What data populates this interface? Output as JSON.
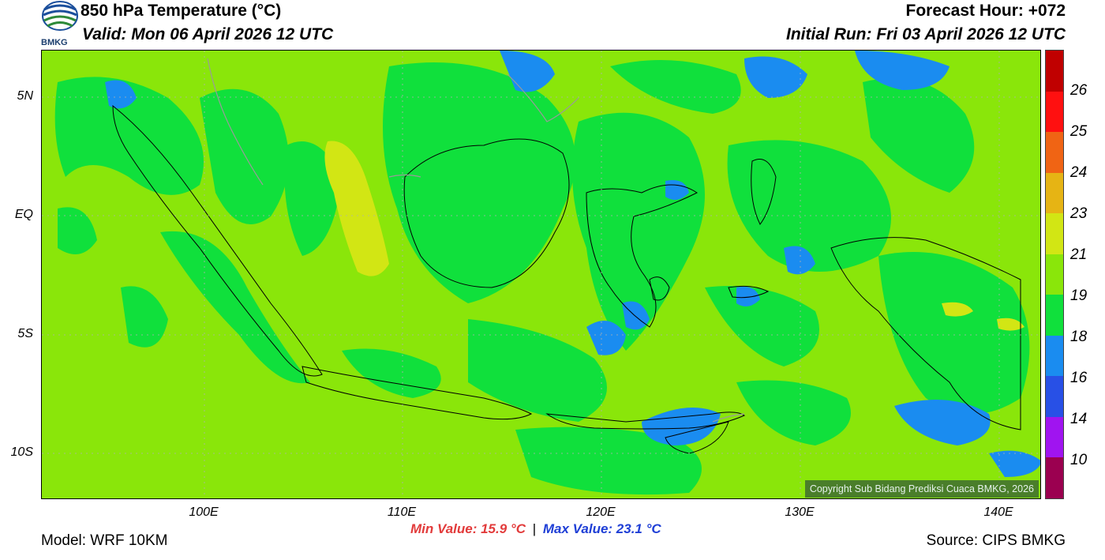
{
  "header": {
    "title": "850 hPa Temperature (°C)",
    "valid": "Valid: Mon 06 April 2026 12 UTC",
    "forecast_hour": "Forecast Hour: +072",
    "initial_run": "Initial Run: Fri 03 April 2026 12 UTC",
    "logo_text": "BMKG"
  },
  "map": {
    "lat_labels": [
      "5N",
      "EQ",
      "5S",
      "10S"
    ],
    "lon_labels": [
      "100E",
      "110E",
      "120E",
      "130E",
      "140E"
    ],
    "copyright": "Copyright Sub Bidang Prediksi Cuaca BMKG, 2026",
    "colors": {
      "base": "#8ae60a",
      "green": "#10e03c",
      "blue": "#1a8cf0",
      "yellow": "#d2e614"
    }
  },
  "colorbar": {
    "labels": [
      "26",
      "25",
      "24",
      "23",
      "21",
      "19",
      "18",
      "16",
      "14",
      "10"
    ],
    "colors": [
      "#c00000",
      "#ff1010",
      "#f06414",
      "#e6b414",
      "#d2e614",
      "#8ae60a",
      "#10e03c",
      "#1a8cf0",
      "#2850e6",
      "#a014f0",
      "#9b0050"
    ]
  },
  "footer": {
    "min_value": "Min Value: 15.9 °C",
    "separator": "|",
    "max_value": "Max Value: 23.1 °C",
    "model": "Model: WRF 10KM",
    "source": "Source: CIPS BMKG"
  }
}
